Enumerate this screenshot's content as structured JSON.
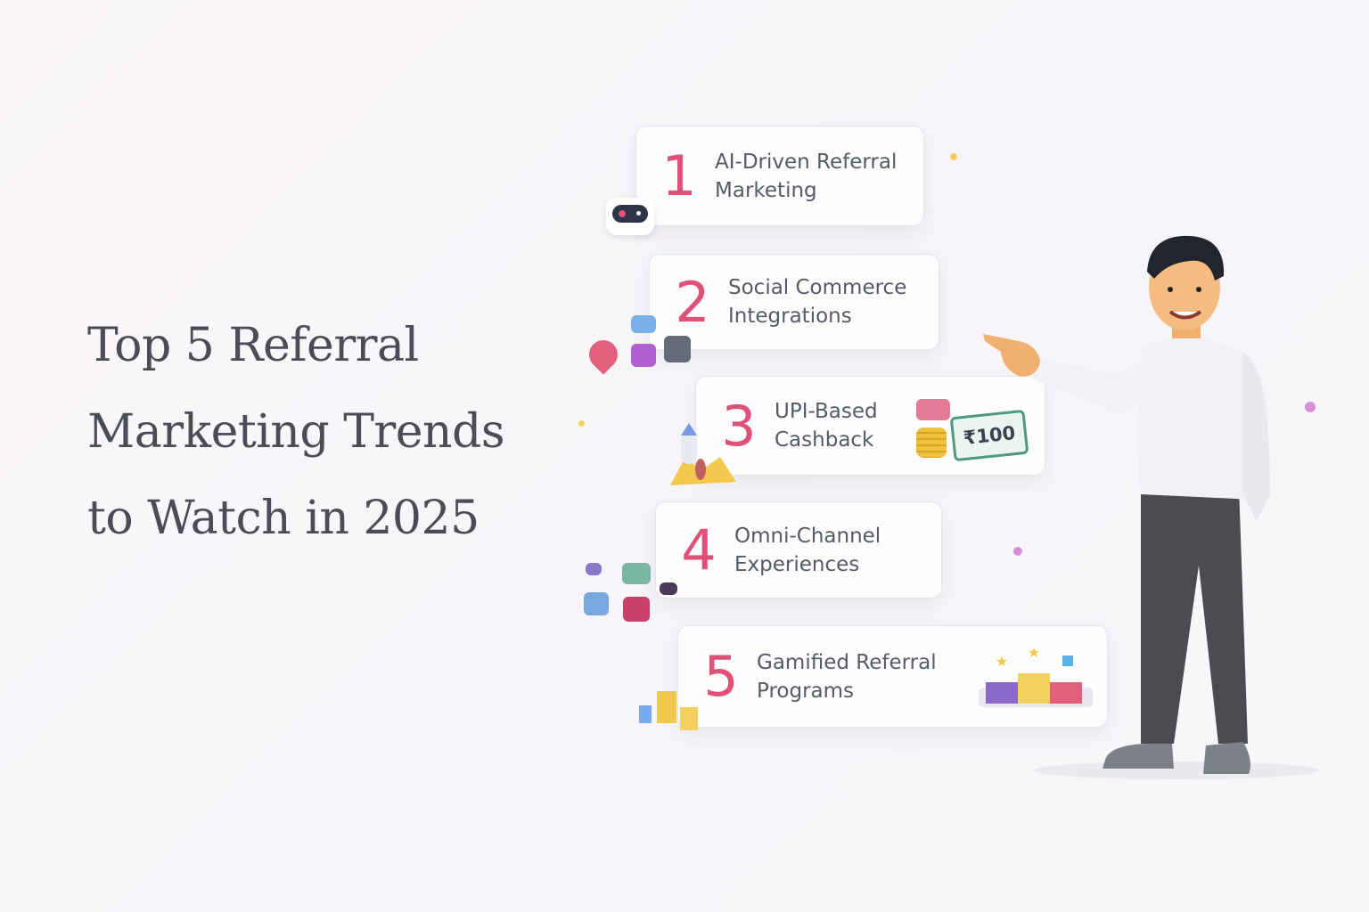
{
  "title": {
    "lines": [
      "Top 5 Referral",
      "Marketing Trends",
      "to Watch in 2025"
    ]
  },
  "trends": [
    {
      "number": "1",
      "line1": "AI-Driven Referral",
      "line2": "Marketing",
      "icon": "robot-icon"
    },
    {
      "number": "2",
      "line1": "Social Commerce",
      "line2": "Integrations",
      "icon": "social-icons"
    },
    {
      "number": "3",
      "line1": "UPI-Based",
      "line2": "Cashback",
      "icon": "cash-icon",
      "badge": "₹100"
    },
    {
      "number": "4",
      "line1": "Omni-Channel",
      "line2": "Experiences",
      "icon": "channels-icon"
    },
    {
      "number": "5",
      "line1": "Gamified Referral",
      "line2": "Programs",
      "icon": "podium-icon"
    }
  ],
  "colors": {
    "accent": "#e0517a",
    "text": "#555a66",
    "title": "#4a4c57"
  }
}
